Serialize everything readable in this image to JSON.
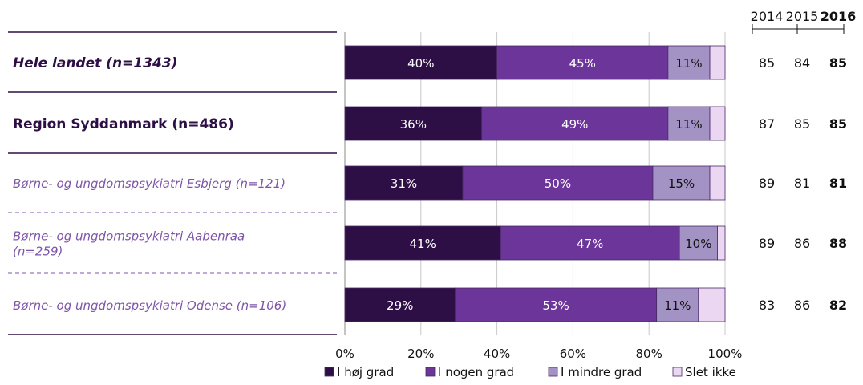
{
  "chart_data": {
    "type": "bar",
    "orientation": "horizontal",
    "stacked": true,
    "categories": [
      "Hele landet (n=1343)",
      "Region Syddanmark (n=486)",
      "Børne- og ungdomspsykiatri Esbjerg (n=121)",
      "Børne- og ungdomspsykiatri Aabenraa (n=259)",
      "Børne- og ungdomspsykiatri Odense (n=106)"
    ],
    "category_lines": [
      [
        "Hele landet (n=1343)"
      ],
      [
        "Region Syddanmark (n=486)"
      ],
      [
        "Børne- og ungdomspsykiatri Esbjerg (n=121)"
      ],
      [
        "Børne- og ungdomspsykiatri Aabenraa",
        "(n=259)"
      ],
      [
        "Børne- og ungdomspsykiatri Odense (n=106)"
      ]
    ],
    "category_styles": [
      "bold-italic",
      "bold",
      "italic",
      "italic",
      "italic"
    ],
    "series": [
      {
        "name": "I høj grad",
        "values": [
          40,
          36,
          31,
          41,
          29
        ],
        "labels": [
          "40%",
          "36%",
          "31%",
          "41%",
          "29%"
        ]
      },
      {
        "name": "I nogen grad",
        "values": [
          45,
          49,
          50,
          47,
          53
        ],
        "labels": [
          "45%",
          "49%",
          "50%",
          "47%",
          "53%"
        ]
      },
      {
        "name": "I mindre grad",
        "values": [
          11,
          11,
          15,
          10,
          11
        ],
        "labels": [
          "11%",
          "11%",
          "15%",
          "10%",
          "11%"
        ]
      },
      {
        "name": "Slet ikke",
        "values": [
          4,
          4,
          4,
          2,
          7
        ],
        "labels": [
          "",
          "",
          "",
          "",
          ""
        ]
      }
    ],
    "xlim": [
      0,
      100
    ],
    "xticks": [
      "0%",
      "20%",
      "40%",
      "60%",
      "80%",
      "100%"
    ],
    "grid": true,
    "legend": "bottom",
    "colors": {
      "I høj grad": "#2e0f45",
      "I nogen grad": "#6b3599",
      "I mindre grad": "#a393c4",
      "Slet ikke": "#ecd7f3",
      "label_primary": "#2e0f45",
      "label_secondary": "#7e55a8"
    },
    "year_columns": {
      "years": [
        "2014",
        "2015",
        "2016"
      ],
      "bold_year": "2016",
      "values": [
        [
          "85",
          "84",
          "85"
        ],
        [
          "87",
          "85",
          "85"
        ],
        [
          "89",
          "81",
          "81"
        ],
        [
          "89",
          "86",
          "88"
        ],
        [
          "83",
          "86",
          "82"
        ]
      ]
    }
  }
}
